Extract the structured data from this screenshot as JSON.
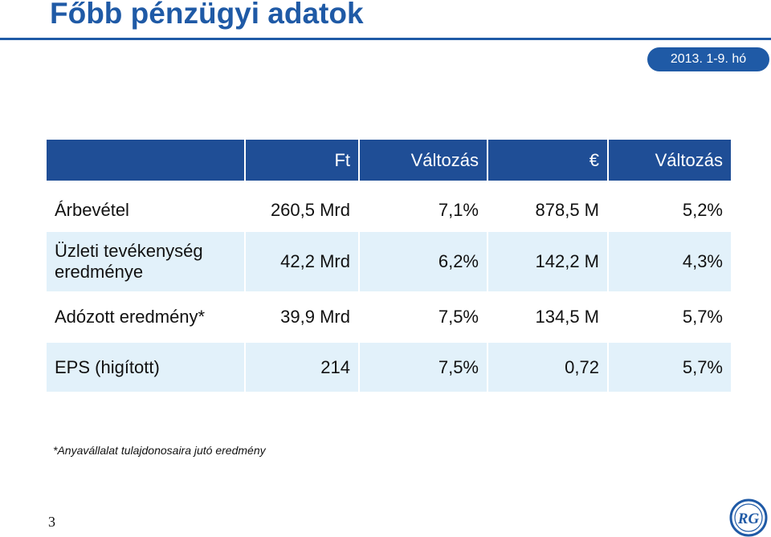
{
  "title": "Főbb pénzügyi adatok",
  "period": "2013. 1-9. hó",
  "table": {
    "headers": [
      "",
      "Ft",
      "Változás",
      "€",
      "Változás"
    ],
    "rows": [
      {
        "label": "Árbevétel",
        "values": [
          "260,5 Mrd",
          "7,1%",
          "878,5 M",
          "5,2%"
        ]
      },
      {
        "label": "Üzleti tevékenység eredménye",
        "values": [
          "42,2 Mrd",
          "6,2%",
          "142,2 M",
          "4,3%"
        ]
      },
      {
        "label": "Adózott eredmény*",
        "values": [
          "39,9 Mrd",
          "7,5%",
          "134,5 M",
          "5,7%"
        ]
      },
      {
        "label": "EPS (higított)",
        "values": [
          "214",
          "7,5%",
          "0,72",
          "5,7%"
        ]
      }
    ]
  },
  "footnote": "*Anyavállalat tulajdonosaira jutó eredmény",
  "page_number": "3",
  "logo": {
    "text": "RG",
    "icon": "richter-gedeon-logo"
  },
  "colors": {
    "brand_blue": "#1f5aa6",
    "header_blue": "#1f4e96",
    "row_light_blue": "#e2f1fa"
  }
}
